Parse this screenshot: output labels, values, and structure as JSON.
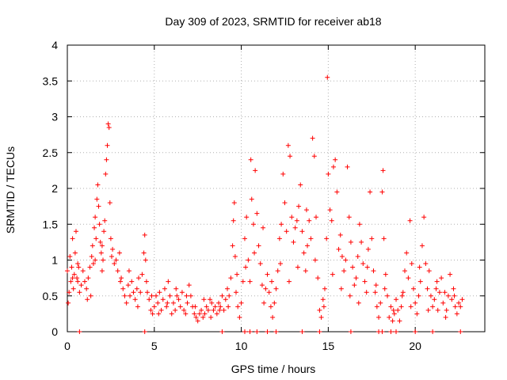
{
  "chart_data": {
    "type": "scatter",
    "title": "Day 309 of 2023, SRMTID for receiver ab18",
    "xlabel": "GPS time / hours",
    "ylabel": "SRMTID / TECUs",
    "xlim": [
      0,
      24
    ],
    "ylim": [
      0,
      4
    ],
    "x_ticks": [
      0,
      5,
      10,
      15,
      20
    ],
    "y_ticks": [
      0,
      0.5,
      1,
      1.5,
      2,
      2.5,
      3,
      3.5,
      4
    ],
    "x_tick_labels": [
      "0",
      "5",
      "10",
      "15",
      "20"
    ],
    "y_tick_labels": [
      "0",
      "0.5",
      "1",
      "1.5",
      "2",
      "2.5",
      "3",
      "3.5",
      "4"
    ],
    "grid": true,
    "marker": "plus",
    "color": "#ff0000",
    "series": [
      {
        "name": "SRMTID",
        "points": [
          [
            0.0,
            0.85
          ],
          [
            0.05,
            0.4
          ],
          [
            0.1,
            0.55
          ],
          [
            0.15,
            1.05
          ],
          [
            0.2,
            0.7
          ],
          [
            0.25,
            0.9
          ],
          [
            0.3,
            1.3
          ],
          [
            0.35,
            0.6
          ],
          [
            0.4,
            0.8
          ],
          [
            0.45,
            1.1
          ],
          [
            0.5,
            1.4
          ],
          [
            0.55,
            0.75
          ],
          [
            0.6,
            0.7
          ],
          [
            0.65,
            0.9
          ],
          [
            0.7,
            0.55
          ],
          [
            0.8,
            0.65
          ],
          [
            0.9,
            0.85
          ],
          [
            1.0,
            0.7
          ],
          [
            1.1,
            0.6
          ],
          [
            1.2,
            0.75
          ],
          [
            1.3,
            0.9
          ],
          [
            1.35,
            0.5
          ],
          [
            1.4,
            1.05
          ],
          [
            1.45,
            1.2
          ],
          [
            1.5,
            0.95
          ],
          [
            1.55,
            1.45
          ],
          [
            1.6,
            1.6
          ],
          [
            1.65,
            1.3
          ],
          [
            1.7,
            1.85
          ],
          [
            1.75,
            2.05
          ],
          [
            1.8,
            1.75
          ],
          [
            1.85,
            1.5
          ],
          [
            1.9,
            1.25
          ],
          [
            1.95,
            1.1
          ],
          [
            2.0,
            1.2
          ],
          [
            2.05,
            1.0
          ],
          [
            2.1,
            1.4
          ],
          [
            2.15,
            1.55
          ],
          [
            2.2,
            2.2
          ],
          [
            2.25,
            2.4
          ],
          [
            2.3,
            2.6
          ],
          [
            2.35,
            2.9
          ],
          [
            2.4,
            2.85
          ],
          [
            2.45,
            1.8
          ],
          [
            2.5,
            1.3
          ],
          [
            2.6,
            1.15
          ],
          [
            2.7,
            0.95
          ],
          [
            2.8,
            1.0
          ],
          [
            2.9,
            0.85
          ],
          [
            3.0,
            1.1
          ],
          [
            3.1,
            0.75
          ],
          [
            3.2,
            0.6
          ],
          [
            3.3,
            0.5
          ],
          [
            3.4,
            0.4
          ],
          [
            3.5,
            0.65
          ],
          [
            3.6,
            0.5
          ],
          [
            3.7,
            0.7
          ],
          [
            3.8,
            0.55
          ],
          [
            3.9,
            0.45
          ],
          [
            4.0,
            0.6
          ],
          [
            4.1,
            0.75
          ],
          [
            4.2,
            0.55
          ],
          [
            4.3,
            0.8
          ],
          [
            4.4,
            1.1
          ],
          [
            4.45,
            1.35
          ],
          [
            4.5,
            1.0
          ],
          [
            4.55,
            0.7
          ],
          [
            4.6,
            0.55
          ],
          [
            4.7,
            0.45
          ],
          [
            4.8,
            0.3
          ],
          [
            4.9,
            0.25
          ],
          [
            5.0,
            0.35
          ],
          [
            5.1,
            0.5
          ],
          [
            5.2,
            0.4
          ],
          [
            5.3,
            0.55
          ],
          [
            5.4,
            0.3
          ],
          [
            5.5,
            0.45
          ],
          [
            5.6,
            0.6
          ],
          [
            5.7,
            0.35
          ],
          [
            5.8,
            0.7
          ],
          [
            5.9,
            0.5
          ],
          [
            6.0,
            0.25
          ],
          [
            6.1,
            0.4
          ],
          [
            6.2,
            0.3
          ],
          [
            6.3,
            0.5
          ],
          [
            6.4,
            0.45
          ],
          [
            6.5,
            0.35
          ],
          [
            6.6,
            0.55
          ],
          [
            6.7,
            0.3
          ],
          [
            6.8,
            0.25
          ],
          [
            6.9,
            0.4
          ],
          [
            7.0,
            0.65
          ],
          [
            7.1,
            0.5
          ],
          [
            7.2,
            0.35
          ],
          [
            7.3,
            0.25
          ],
          [
            7.4,
            0.2
          ],
          [
            7.5,
            0.15
          ],
          [
            7.6,
            0.25
          ],
          [
            7.7,
            0.3
          ],
          [
            7.8,
            0.2
          ],
          [
            7.9,
            0.25
          ],
          [
            8.0,
            0.35
          ],
          [
            8.1,
            0.3
          ],
          [
            8.2,
            0.45
          ],
          [
            8.3,
            0.4
          ],
          [
            8.4,
            0.3
          ],
          [
            8.5,
            0.35
          ],
          [
            8.6,
            0.25
          ],
          [
            8.7,
            0.4
          ],
          [
            8.8,
            0.35
          ],
          [
            8.9,
            0.5
          ],
          [
            9.0,
            0.3
          ],
          [
            9.1,
            0.45
          ],
          [
            9.2,
            0.6
          ],
          [
            9.3,
            0.5
          ],
          [
            9.4,
            0.75
          ],
          [
            9.5,
            1.2
          ],
          [
            9.55,
            1.55
          ],
          [
            9.6,
            1.8
          ],
          [
            9.65,
            1.05
          ],
          [
            9.7,
            0.55
          ],
          [
            9.8,
            0.35
          ],
          [
            9.9,
            0.2
          ],
          [
            10.0,
            0.4
          ],
          [
            10.1,
            0.7
          ],
          [
            10.2,
            1.3
          ],
          [
            10.3,
            1.6
          ],
          [
            10.4,
            1.0
          ],
          [
            10.5,
            0.7
          ],
          [
            10.55,
            2.4
          ],
          [
            10.6,
            1.85
          ],
          [
            10.7,
            1.5
          ],
          [
            10.8,
            2.25
          ],
          [
            10.9,
            1.65
          ],
          [
            11.0,
            1.2
          ],
          [
            11.1,
            0.95
          ],
          [
            11.2,
            0.65
          ],
          [
            11.3,
            0.4
          ],
          [
            11.4,
            0.6
          ],
          [
            11.5,
            0.8
          ],
          [
            11.6,
            0.55
          ],
          [
            11.7,
            0.35
          ],
          [
            11.8,
            0.2
          ],
          [
            11.9,
            0.4
          ],
          [
            12.0,
            0.6
          ],
          [
            12.1,
            0.85
          ],
          [
            12.2,
            1.3
          ],
          [
            12.3,
            1.5
          ],
          [
            12.4,
            2.2
          ],
          [
            12.5,
            1.8
          ],
          [
            12.6,
            1.4
          ],
          [
            12.7,
            2.6
          ],
          [
            12.8,
            2.45
          ],
          [
            12.9,
            1.6
          ],
          [
            13.0,
            1.25
          ],
          [
            13.1,
            1.45
          ],
          [
            13.2,
            1.55
          ],
          [
            13.3,
            1.75
          ],
          [
            13.4,
            2.05
          ],
          [
            13.5,
            1.4
          ],
          [
            13.6,
            1.1
          ],
          [
            13.7,
            0.85
          ],
          [
            13.8,
            1.2
          ],
          [
            13.9,
            1.55
          ],
          [
            14.0,
            1.3
          ],
          [
            14.1,
            2.7
          ],
          [
            14.2,
            2.45
          ],
          [
            14.3,
            1.6
          ],
          [
            14.4,
            0.75
          ],
          [
            14.5,
            0.3
          ],
          [
            14.6,
            0.2
          ],
          [
            14.7,
            0.45
          ],
          [
            14.8,
            0.6
          ],
          [
            14.9,
            1.3
          ],
          [
            14.95,
            3.55
          ],
          [
            15.0,
            2.2
          ],
          [
            15.1,
            1.7
          ],
          [
            15.2,
            1.55
          ],
          [
            15.3,
            2.3
          ],
          [
            15.4,
            2.4
          ],
          [
            15.5,
            1.95
          ],
          [
            15.6,
            1.15
          ],
          [
            15.7,
            1.35
          ],
          [
            15.8,
            1.05
          ],
          [
            15.9,
            0.85
          ],
          [
            16.0,
            1.0
          ],
          [
            16.1,
            2.3
          ],
          [
            16.2,
            1.6
          ],
          [
            16.3,
            1.25
          ],
          [
            16.4,
            0.9
          ],
          [
            16.5,
            0.65
          ],
          [
            16.6,
            0.75
          ],
          [
            16.7,
            1.05
          ],
          [
            16.8,
            1.5
          ],
          [
            16.9,
            1.25
          ],
          [
            17.0,
            0.95
          ],
          [
            17.1,
            0.7
          ],
          [
            17.2,
            0.55
          ],
          [
            17.3,
            1.15
          ],
          [
            17.4,
            1.95
          ],
          [
            17.5,
            1.3
          ],
          [
            17.6,
            0.85
          ],
          [
            17.7,
            0.55
          ],
          [
            17.8,
            0.35
          ],
          [
            17.9,
            0.2
          ],
          [
            18.0,
            0.4
          ],
          [
            18.1,
            1.95
          ],
          [
            18.15,
            2.25
          ],
          [
            18.2,
            1.3
          ],
          [
            18.3,
            0.8
          ],
          [
            18.4,
            0.5
          ],
          [
            18.5,
            0.2
          ],
          [
            18.6,
            0.35
          ],
          [
            18.7,
            0.15
          ],
          [
            18.8,
            0.25
          ],
          [
            18.9,
            0.45
          ],
          [
            19.0,
            0.3
          ],
          [
            19.1,
            0.15
          ],
          [
            19.2,
            0.35
          ],
          [
            19.3,
            0.55
          ],
          [
            19.4,
            0.85
          ],
          [
            19.5,
            1.1
          ],
          [
            19.6,
            0.75
          ],
          [
            19.7,
            1.55
          ],
          [
            19.8,
            0.95
          ],
          [
            19.9,
            0.6
          ],
          [
            20.0,
            0.4
          ],
          [
            20.1,
            0.25
          ],
          [
            20.2,
            0.5
          ],
          [
            20.3,
            0.7
          ],
          [
            20.4,
            1.2
          ],
          [
            20.5,
            1.6
          ],
          [
            20.6,
            0.95
          ],
          [
            20.7,
            0.6
          ],
          [
            20.8,
            0.85
          ],
          [
            20.9,
            0.5
          ],
          [
            21.0,
            0.35
          ],
          [
            21.1,
            0.45
          ],
          [
            21.2,
            0.6
          ],
          [
            21.3,
            0.3
          ],
          [
            21.4,
            0.55
          ],
          [
            21.5,
            0.75
          ],
          [
            21.6,
            0.4
          ],
          [
            21.7,
            0.55
          ],
          [
            21.8,
            0.3
          ],
          [
            21.9,
            0.5
          ],
          [
            22.0,
            0.8
          ],
          [
            22.1,
            0.45
          ],
          [
            22.2,
            0.6
          ],
          [
            22.3,
            0.35
          ],
          [
            22.4,
            0.25
          ],
          [
            22.5,
            0.4
          ],
          [
            22.6,
            0.35
          ],
          [
            22.7,
            0.45
          ],
          [
            0.3,
            0.75
          ],
          [
            0.6,
            0.95
          ],
          [
            1.15,
            0.45
          ],
          [
            1.6,
            1.0
          ],
          [
            2.0,
            0.85
          ],
          [
            2.55,
            1.05
          ],
          [
            3.05,
            0.7
          ],
          [
            3.55,
            0.85
          ],
          [
            4.05,
            0.35
          ],
          [
            4.85,
            0.5
          ],
          [
            5.25,
            0.25
          ],
          [
            5.75,
            0.4
          ],
          [
            6.25,
            0.6
          ],
          [
            6.85,
            0.5
          ],
          [
            7.35,
            0.35
          ],
          [
            7.85,
            0.45
          ],
          [
            8.25,
            0.2
          ],
          [
            8.75,
            0.3
          ],
          [
            9.25,
            0.35
          ],
          [
            9.75,
            0.8
          ],
          [
            10.25,
            0.9
          ],
          [
            10.75,
            1.1
          ],
          [
            11.25,
            1.45
          ],
          [
            11.75,
            0.7
          ],
          [
            12.25,
            0.95
          ],
          [
            12.75,
            0.7
          ],
          [
            13.25,
            0.9
          ],
          [
            13.75,
            1.7
          ],
          [
            14.25,
            1.0
          ],
          [
            14.75,
            0.35
          ],
          [
            15.25,
            0.8
          ],
          [
            15.75,
            0.6
          ],
          [
            16.25,
            0.5
          ],
          [
            16.75,
            0.4
          ],
          [
            17.25,
            0.9
          ],
          [
            17.75,
            0.65
          ],
          [
            18.25,
            0.6
          ],
          [
            18.75,
            0.3
          ],
          [
            19.25,
            0.5
          ],
          [
            19.75,
            0.35
          ],
          [
            20.25,
            0.9
          ],
          [
            20.75,
            0.3
          ],
          [
            21.25,
            0.7
          ],
          [
            21.75,
            0.2
          ],
          [
            22.25,
            0.5
          ],
          [
            0.7,
            0.0
          ],
          [
            4.45,
            0.0
          ],
          [
            8.9,
            0.0
          ],
          [
            10.2,
            0.0
          ],
          [
            10.5,
            0.0
          ],
          [
            10.9,
            0.0
          ],
          [
            11.5,
            0.0
          ],
          [
            12.0,
            0.0
          ],
          [
            13.5,
            0.0
          ],
          [
            14.5,
            0.0
          ],
          [
            16.3,
            0.0
          ],
          [
            17.9,
            0.0
          ],
          [
            18.1,
            0.0
          ],
          [
            18.6,
            0.0
          ],
          [
            18.9,
            0.0
          ],
          [
            20.0,
            0.0
          ],
          [
            21.0,
            0.0
          ],
          [
            22.6,
            0.0
          ]
        ]
      }
    ]
  }
}
